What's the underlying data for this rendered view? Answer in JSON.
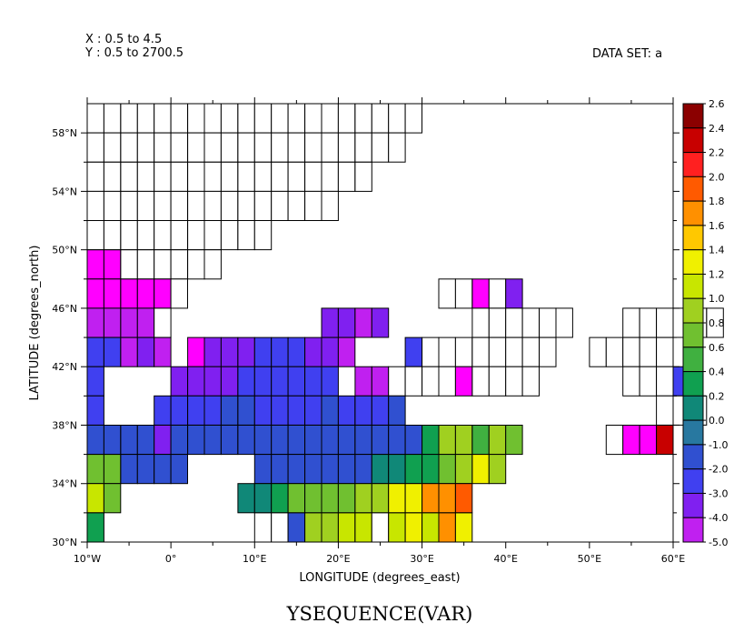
{
  "header": {
    "x_range": "X : 0.5 to 4.5",
    "y_range": "Y : 0.5 to 2700.5",
    "dataset": "DATA SET: a"
  },
  "chart_data": {
    "type": "heatmap",
    "title": "YSEQUENCE(VAR)",
    "xlabel": "LONGITUDE (degrees_east)",
    "ylabel": "LATITUDE (degrees_north)",
    "xlim": [
      -10,
      60
    ],
    "ylim": [
      30,
      60
    ],
    "x_ticks": [
      "10°W",
      "0°",
      "10°E",
      "20°E",
      "30°E",
      "40°E",
      "50°E",
      "60°E"
    ],
    "y_ticks": [
      "30°N",
      "34°N",
      "38°N",
      "42°N",
      "46°N",
      "50°N",
      "54°N",
      "58°N"
    ],
    "cell_size_degrees": [
      2,
      2
    ],
    "colorbar": {
      "labels": [
        "2.6",
        "2.4",
        "2.2",
        "2.0",
        "1.8",
        "1.6",
        "1.4",
        "1.2",
        "1.0",
        "0.8",
        "0.6",
        "0.4",
        "0.2",
        "0.0",
        "-1.0",
        "-2.0",
        "-3.0",
        "-4.0",
        "-5.0"
      ],
      "colors": [
        "#8b0000",
        "#c80000",
        "#ff2020",
        "#ff5a00",
        "#ff9000",
        "#ffc800",
        "#f0f000",
        "#c8e600",
        "#a0d020",
        "#70c030",
        "#40b040",
        "#10a050",
        "#108878",
        "#2878a0",
        "#3050d0",
        "#4040f0",
        "#8020f0",
        "#c020f0",
        "#ff00ff"
      ]
    },
    "rows": [
      {
        "lat": 59,
        "lon_start": -9,
        "cells": "wwwwwwwwwwwwwwwwwwww"
      },
      {
        "lat": 57,
        "lon_start": -9,
        "cells": "wwwwwwwwwwwwwwwwwww"
      },
      {
        "lat": 55,
        "lon_start": -9,
        "cells": "wwwwwwwwwwwwwwwww"
      },
      {
        "lat": 53,
        "lon_start": -9,
        "cells": "wwwwwwwwwwwwwww"
      },
      {
        "lat": 51,
        "lon_start": -9,
        "cells": "wwwwwwwwwww"
      },
      {
        "lat": 49,
        "lon_start": -9,
        "cells": "DDwwwwww"
      },
      {
        "lat": 47,
        "lon_start": -9,
        "cells": "DDDDDw...............wwDwB"
      },
      {
        "lat": 45,
        "lon_start": -9,
        "cells": "CCCCw.........BBCB.....wwwwww...wwwwww"
      },
      {
        "lat": 43,
        "lon_start": -9,
        "cells": "AACBC.DBBBAAABBC...Awwwwwwww..wwwww"
      },
      {
        "lat": 41,
        "lon_start": -9,
        "cells": "A....BBBBAAAAAA.CCwwwwDwwww.....wwwA"
      },
      {
        "lat": 39,
        "lon_start": -9,
        "cells": "A...AAAAzzAAAAzAAAz...............www"
      },
      {
        "lat": 37,
        "lon_start": -9,
        "cells": "zzzzBzzzzzzzzzzzzzzzpllnlx.....wDDR"
      },
      {
        "lat": 35,
        "lon_start": -9,
        "cells": "mmzzzz....zzzzzzzqqppmljl"
      },
      {
        "lat": 33,
        "lon_start": -9,
        "cells": "km.......rrsmmmmllhhffu"
      },
      {
        "lat": 31,
        "lon_start": -9,
        "cells": "s.........wwzoottwkhtfh"
      }
    ],
    "code_legend": {
      "w": "no value",
      "D": "-5.0",
      "C": "-4.0",
      "B": "-3.0",
      "A": "-2.0",
      "z": "-1.0",
      "y": "0.0",
      "s": "0.4",
      "r": "0.2",
      "q": "0.2",
      "p": "0.4",
      "n": "0.6",
      "m": "0.8",
      "l": "1.0",
      "k": "1.2",
      "j": "1.4",
      "h": "1.4",
      "o": "1.0",
      "t": "1.2",
      "f": "1.8",
      "x": "0.8",
      "u": "2.0",
      "R": "2.4"
    }
  }
}
